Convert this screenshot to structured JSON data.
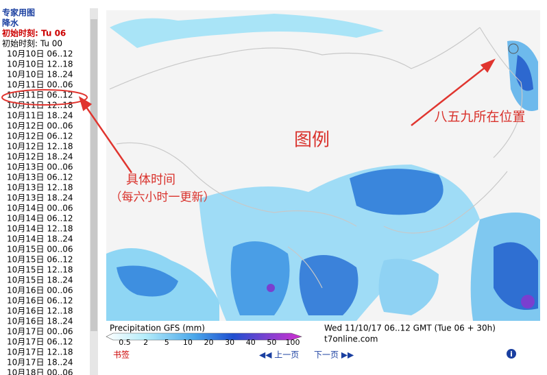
{
  "sidebar": {
    "title": "专家用图",
    "subtitle": "降水",
    "init_current": "初始时刻: Tu 06",
    "init_other": "初始时刻: Tu 00",
    "times": [
      "10月10日 06..12",
      "10月10日 12..18",
      "10月10日 18..24",
      "10月11日 00..06",
      "10月11日 06..12",
      "10月11日 12..18",
      "10月11日 18..24",
      "10月12日 00..06",
      "10月12日 06..12",
      "10月12日 12..18",
      "10月12日 18..24",
      "10月13日 00..06",
      "10月13日 06..12",
      "10月13日 12..18",
      "10月13日 18..24",
      "10月14日 00..06",
      "10月14日 06..12",
      "10月14日 12..18",
      "10月14日 18..24",
      "10月15日 00..06",
      "10月15日 06..12",
      "10月15日 12..18",
      "10月15日 18..24",
      "10月16日 00..06",
      "10月16日 06..12",
      "10月16日 12..18",
      "10月16日 18..24",
      "10月17日 00..06",
      "10月17日 06..12",
      "10月17日 12..18",
      "10月17日 18..24",
      "10月18日 00..06"
    ]
  },
  "annotations": {
    "legend_note": "图例",
    "location_note": "八五九所在位置",
    "time_note": "具体时间",
    "update_note": "（每六小时一更新）"
  },
  "legend": {
    "title": "Precipitation GFS (mm)",
    "ticks": [
      "0.5",
      "2",
      "5",
      "10",
      "20",
      "30",
      "40",
      "50",
      "100"
    ]
  },
  "footer": {
    "timestamp": "Wed 11/10/17 06..12 GMT (Tue 06 + 30h)",
    "site": "t7online.com",
    "bookmark": "书签",
    "prev": "◀◀ 上一页",
    "next": "下一页 ▶▶",
    "info": "i"
  }
}
